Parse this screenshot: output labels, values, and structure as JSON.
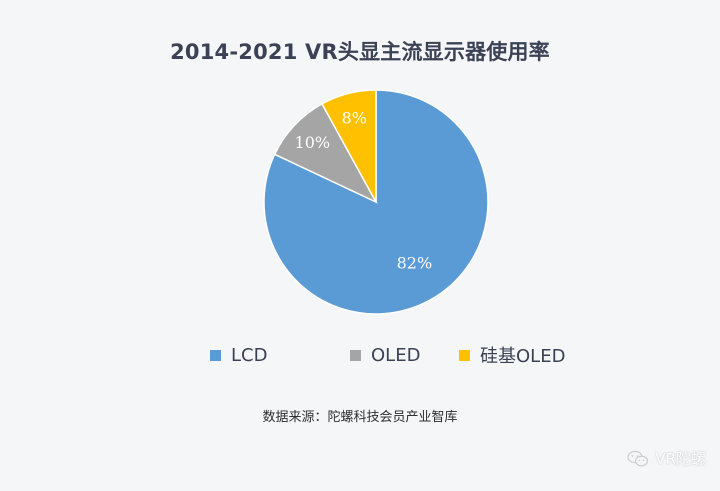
{
  "chart_data": {
    "type": "pie",
    "title": "2014-2021 VR头显主流显示器使用率",
    "categories": [
      "LCD",
      "OLED",
      "硅基OLED"
    ],
    "values": [
      82,
      10,
      8
    ],
    "labels": [
      "82%",
      "10%",
      "8%"
    ],
    "colors": [
      "#5b9bd5",
      "#a5a5a5",
      "#ffc000"
    ],
    "legend_position": "bottom"
  },
  "source": "数据来源：陀螺科技会员产业智库",
  "watermark": "VR陀螺"
}
